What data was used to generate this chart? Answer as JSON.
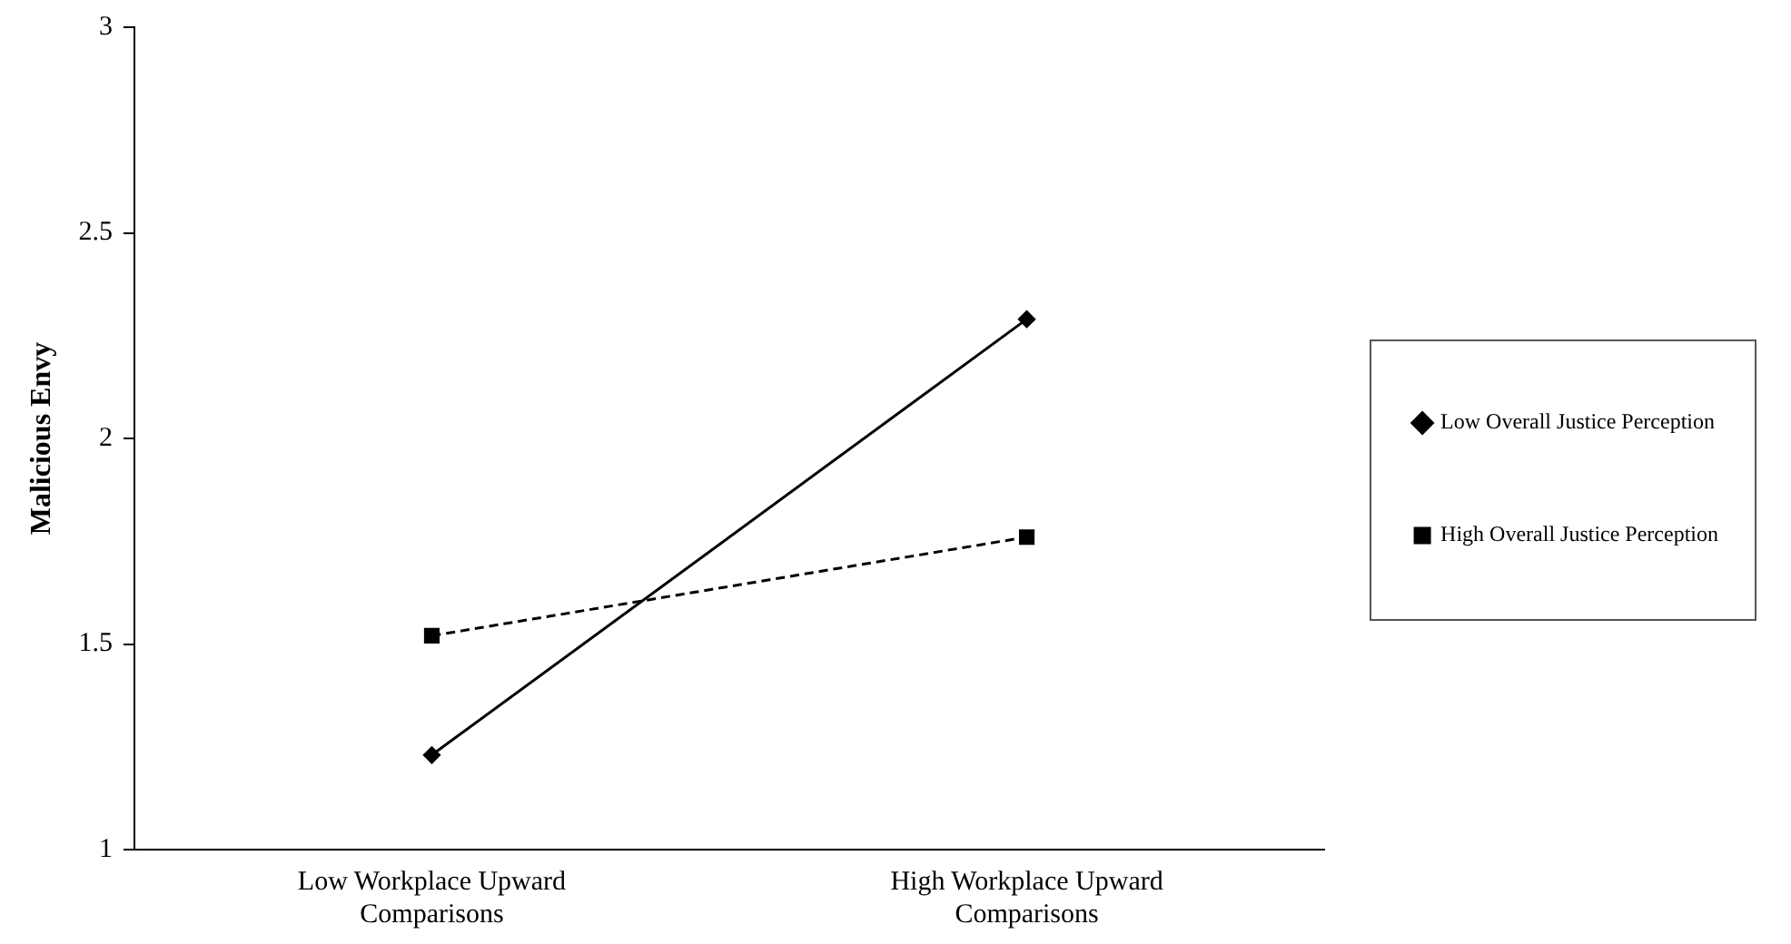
{
  "chart_data": {
    "type": "line",
    "ylabel": "Malicious Envy",
    "categories": [
      "Low Workplace Upward Comparisons",
      "High Workplace Upward Comparisons"
    ],
    "series": [
      {
        "name": "Low Overall Justice Perception",
        "color": "#000000",
        "values": [
          1.23,
          2.29
        ],
        "marker": "diamond",
        "line_style": "solid"
      },
      {
        "name": "High Overall Justice Perception",
        "color": "#000000",
        "values": [
          1.52,
          1.76
        ],
        "marker": "square",
        "line_style": "dashed"
      }
    ],
    "ylim": [
      1,
      3
    ],
    "yticks": [
      1,
      1.5,
      2,
      2.5,
      3
    ],
    "grid": false,
    "legend": "right"
  }
}
